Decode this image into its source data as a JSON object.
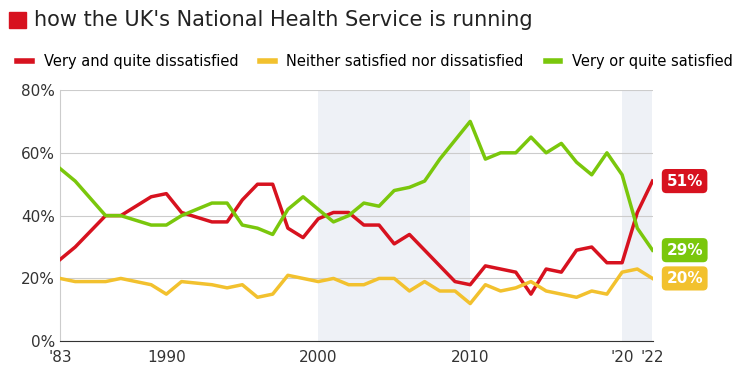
{
  "chart_data": {
    "type": "line",
    "title": "how the UK's National Health Service is running",
    "x": [
      1983,
      1984,
      1986,
      1987,
      1989,
      1990,
      1991,
      1993,
      1994,
      1995,
      1996,
      1997,
      1998,
      1999,
      2000,
      2001,
      2002,
      2003,
      2004,
      2005,
      2006,
      2007,
      2008,
      2009,
      2010,
      2011,
      2012,
      2013,
      2014,
      2015,
      2016,
      2017,
      2018,
      2019,
      2020,
      2021,
      2022
    ],
    "series": [
      {
        "name": "Very and quite dissatisfied",
        "color": "#d7121f",
        "values": [
          26,
          30,
          40,
          40,
          46,
          47,
          41,
          38,
          38,
          45,
          50,
          50,
          36,
          33,
          39,
          41,
          41,
          37,
          37,
          31,
          34,
          29,
          24,
          19,
          18,
          24,
          23,
          22,
          15,
          23,
          22,
          29,
          30,
          25,
          25,
          41,
          51
        ],
        "value_labels": [
          null,
          null,
          null,
          null,
          null,
          null,
          null,
          null,
          null,
          null,
          null,
          null,
          null,
          null,
          null,
          null,
          null,
          null,
          null,
          null,
          null,
          null,
          null,
          null,
          null,
          null,
          null,
          null,
          null,
          null,
          null,
          null,
          null,
          null,
          null,
          null,
          "51%"
        ]
      },
      {
        "name": "Neither satisfied nor dissatisfied",
        "color": "#f2c12e",
        "values": [
          20,
          19,
          19,
          20,
          18,
          15,
          19,
          18,
          17,
          18,
          14,
          15,
          21,
          20,
          19,
          20,
          18,
          18,
          20,
          20,
          16,
          19,
          16,
          16,
          12,
          18,
          16,
          17,
          19,
          16,
          15,
          14,
          16,
          15,
          22,
          23,
          20
        ],
        "value_labels": [
          null,
          null,
          null,
          null,
          null,
          null,
          null,
          null,
          null,
          null,
          null,
          null,
          null,
          null,
          null,
          null,
          null,
          null,
          null,
          null,
          null,
          null,
          null,
          null,
          null,
          null,
          null,
          null,
          null,
          null,
          null,
          null,
          null,
          null,
          null,
          null,
          "20%"
        ]
      },
      {
        "name": "Very or quite satisfied",
        "color": "#7ac70c",
        "values": [
          55,
          51,
          40,
          40,
          37,
          37,
          40,
          44,
          44,
          37,
          36,
          34,
          42,
          46,
          42,
          38,
          40,
          44,
          43,
          48,
          49,
          51,
          58,
          64,
          70,
          58,
          60,
          60,
          65,
          60,
          63,
          57,
          53,
          60,
          53,
          36,
          29
        ],
        "value_labels": [
          null,
          null,
          null,
          null,
          null,
          null,
          null,
          null,
          null,
          null,
          null,
          null,
          null,
          null,
          null,
          null,
          null,
          null,
          null,
          null,
          null,
          null,
          null,
          null,
          null,
          null,
          null,
          null,
          null,
          null,
          null,
          null,
          null,
          null,
          null,
          null,
          "29%"
        ]
      }
    ],
    "xlim": [
      1983,
      2022
    ],
    "xticks": [
      {
        "value": 1983,
        "label": "'83"
      },
      1990,
      2000,
      2010,
      {
        "value": 2020,
        "label": "'20"
      },
      {
        "value": 2022,
        "label": "'22"
      }
    ],
    "ylim": [
      0,
      80
    ],
    "yticks": [
      {
        "value": 0,
        "label": "0%"
      },
      {
        "value": 20,
        "label": "20%"
      },
      {
        "value": 40,
        "label": "40%"
      },
      {
        "value": 60,
        "label": "60%"
      },
      {
        "value": 80,
        "label": "80%"
      }
    ],
    "grid": true,
    "legend": "upper center",
    "data_labels": true
  }
}
